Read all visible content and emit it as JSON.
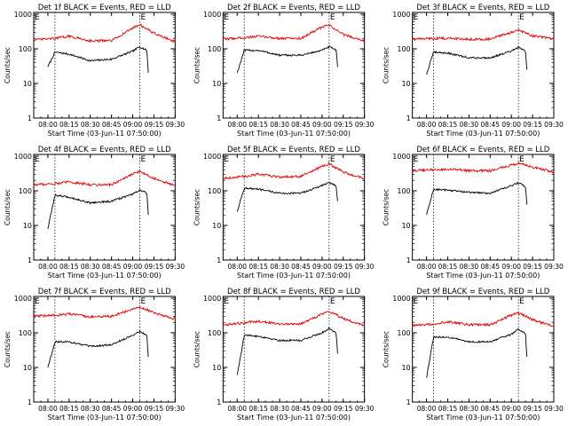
{
  "chart_data": [
    {
      "type": "line",
      "title": "Det 1f BLACK = Events, RED = LLD",
      "xlabel": "Start Time (03-Jun-11 07:50:00)",
      "ylabel": "Counts/sec",
      "x_ticks": [
        "08:00",
        "08:15",
        "08:30",
        "08:45",
        "09:00",
        "09:15",
        "09:30"
      ],
      "y_ticks": [
        "1",
        "10",
        "100",
        "1000"
      ],
      "y_scale": "log",
      "ylim": [
        1,
        1000
      ],
      "xlim": [
        "07:50",
        "09:30"
      ],
      "marker": "E",
      "series": [
        {
          "name": "BLACK = Events",
          "color": "#000000",
          "x": [
            "08:00",
            "08:05",
            "08:15",
            "08:30",
            "08:45",
            "09:00",
            "09:05",
            "09:10",
            "09:11"
          ],
          "y": [
            30,
            80,
            70,
            45,
            50,
            85,
            115,
            90,
            20
          ]
        },
        {
          "name": "RED = LLD",
          "color": "#e00000",
          "x": [
            "07:50",
            "08:05",
            "08:15",
            "08:30",
            "08:45",
            "09:00",
            "09:05",
            "09:15",
            "09:30"
          ],
          "y": [
            180,
            200,
            230,
            170,
            170,
            400,
            500,
            280,
            160
          ]
        }
      ]
    },
    {
      "type": "line",
      "title": "Det 2f BLACK = Events, RED = LLD",
      "xlabel": "Start Time (03-Jun-11 07:50:00)",
      "ylabel": "Counts/sec",
      "x_ticks": [
        "08:00",
        "08:15",
        "08:30",
        "08:45",
        "09:00",
        "09:15",
        "09:30"
      ],
      "y_ticks": [
        "1",
        "10",
        "100",
        "1000"
      ],
      "y_scale": "log",
      "ylim": [
        1,
        1000
      ],
      "xlim": [
        "07:50",
        "09:30"
      ],
      "marker": "E",
      "series": [
        {
          "name": "BLACK = Events",
          "color": "#000000",
          "x": [
            "08:00",
            "08:05",
            "08:15",
            "08:30",
            "08:45",
            "09:00",
            "09:05",
            "09:10",
            "09:11"
          ],
          "y": [
            20,
            90,
            90,
            65,
            65,
            90,
            115,
            90,
            30
          ]
        },
        {
          "name": "RED = LLD",
          "color": "#e00000",
          "x": [
            "07:50",
            "08:05",
            "08:15",
            "08:30",
            "08:45",
            "09:00",
            "09:05",
            "09:15",
            "09:30"
          ],
          "y": [
            190,
            210,
            230,
            200,
            200,
            420,
            480,
            260,
            170
          ]
        }
      ]
    },
    {
      "type": "line",
      "title": "Det 3f BLACK = Events, RED = LLD",
      "xlabel": "Start Time (03-Jun-11 07:50:00)",
      "ylabel": "Counts/sec",
      "x_ticks": [
        "08:00",
        "08:15",
        "08:30",
        "08:45",
        "09:00",
        "09:15",
        "09:30"
      ],
      "y_ticks": [
        "1",
        "10",
        "100",
        "1000"
      ],
      "y_scale": "log",
      "ylim": [
        1,
        1000
      ],
      "xlim": [
        "07:50",
        "09:30"
      ],
      "marker": "E",
      "series": [
        {
          "name": "BLACK = Events",
          "color": "#000000",
          "x": [
            "08:00",
            "08:05",
            "08:15",
            "08:30",
            "08:45",
            "09:00",
            "09:05",
            "09:10",
            "09:11"
          ],
          "y": [
            18,
            80,
            75,
            55,
            55,
            85,
            110,
            85,
            25
          ]
        },
        {
          "name": "RED = LLD",
          "color": "#e00000",
          "x": [
            "07:50",
            "08:05",
            "08:15",
            "08:30",
            "08:45",
            "09:00",
            "09:05",
            "09:15",
            "09:30"
          ],
          "y": [
            190,
            200,
            200,
            190,
            190,
            300,
            340,
            240,
            190
          ]
        }
      ]
    },
    {
      "type": "line",
      "title": "Det 4f BLACK = Events, RED = LLD",
      "xlabel": "Start Time (03-Jun-11 07:50:00)",
      "ylabel": "Counts/sec",
      "x_ticks": [
        "08:00",
        "08:15",
        "08:30",
        "08:45",
        "09:00",
        "09:15",
        "09:30"
      ],
      "y_ticks": [
        "1",
        "10",
        "100",
        "1000"
      ],
      "y_scale": "log",
      "ylim": [
        1,
        1000
      ],
      "xlim": [
        "07:50",
        "09:30"
      ],
      "marker": "E",
      "series": [
        {
          "name": "BLACK = Events",
          "color": "#000000",
          "x": [
            "08:00",
            "08:05",
            "08:15",
            "08:30",
            "08:45",
            "09:00",
            "09:05",
            "09:10",
            "09:11"
          ],
          "y": [
            8,
            75,
            65,
            45,
            50,
            80,
            105,
            85,
            20
          ]
        },
        {
          "name": "RED = LLD",
          "color": "#e00000",
          "x": [
            "07:50",
            "08:05",
            "08:15",
            "08:30",
            "08:45",
            "09:00",
            "09:05",
            "09:15",
            "09:30"
          ],
          "y": [
            150,
            160,
            180,
            150,
            150,
            300,
            370,
            230,
            140
          ]
        }
      ]
    },
    {
      "type": "line",
      "title": "Det 5f BLACK = Events, RED = LLD",
      "xlabel": "Start Time (03-Jun-11 07:50:00)",
      "ylabel": "Counts/sec",
      "x_ticks": [
        "08:00",
        "08:15",
        "08:30",
        "08:45",
        "09:00",
        "09:15",
        "09:30"
      ],
      "y_ticks": [
        "1",
        "10",
        "100",
        "1000"
      ],
      "y_scale": "log",
      "ylim": [
        1,
        1000
      ],
      "xlim": [
        "07:50",
        "09:30"
      ],
      "marker": "E",
      "series": [
        {
          "name": "BLACK = Events",
          "color": "#000000",
          "x": [
            "08:00",
            "08:05",
            "08:15",
            "08:30",
            "08:45",
            "09:00",
            "09:05",
            "09:10",
            "09:11"
          ],
          "y": [
            25,
            120,
            110,
            85,
            85,
            140,
            175,
            140,
            50
          ]
        },
        {
          "name": "RED = LLD",
          "color": "#e00000",
          "x": [
            "07:50",
            "08:05",
            "08:15",
            "08:30",
            "08:45",
            "09:00",
            "09:05",
            "09:15",
            "09:30"
          ],
          "y": [
            230,
            260,
            300,
            250,
            260,
            500,
            600,
            350,
            220
          ]
        }
      ]
    },
    {
      "type": "line",
      "title": "Det 6f BLACK = Events, RED = LLD",
      "xlabel": "Start Time (03-Jun-11 07:50:00)",
      "ylabel": "Counts/sec",
      "x_ticks": [
        "08:00",
        "08:15",
        "08:30",
        "08:45",
        "09:00",
        "09:15",
        "09:30"
      ],
      "y_ticks": [
        "1",
        "10",
        "100",
        "1000"
      ],
      "y_scale": "log",
      "ylim": [
        1,
        1000
      ],
      "xlim": [
        "07:50",
        "09:30"
      ],
      "marker": "E",
      "series": [
        {
          "name": "BLACK = Events",
          "color": "#000000",
          "x": [
            "08:00",
            "08:05",
            "08:15",
            "08:30",
            "08:45",
            "09:00",
            "09:05",
            "09:10",
            "09:11"
          ],
          "y": [
            20,
            110,
            105,
            90,
            85,
            140,
            170,
            130,
            40
          ]
        },
        {
          "name": "RED = LLD",
          "color": "#e00000",
          "x": [
            "07:50",
            "08:05",
            "08:15",
            "08:30",
            "08:45",
            "09:00",
            "09:05",
            "09:15",
            "09:30"
          ],
          "y": [
            380,
            400,
            420,
            380,
            380,
            550,
            620,
            480,
            350
          ]
        }
      ]
    },
    {
      "type": "line",
      "title": "Det 7f BLACK = Events, RED = LLD",
      "xlabel": "Start Time (03-Jun-11 07:50:00)",
      "ylabel": "Counts/sec",
      "x_ticks": [
        "08:00",
        "08:15",
        "08:30",
        "08:45",
        "09:00",
        "09:15",
        "09:30"
      ],
      "y_ticks": [
        "1",
        "10",
        "100",
        "1000"
      ],
      "y_scale": "log",
      "ylim": [
        1,
        1000
      ],
      "xlim": [
        "07:50",
        "09:30"
      ],
      "marker": "E",
      "series": [
        {
          "name": "BLACK = Events",
          "color": "#000000",
          "x": [
            "08:00",
            "08:05",
            "08:15",
            "08:30",
            "08:45",
            "09:00",
            "09:05",
            "09:10",
            "09:11"
          ],
          "y": [
            10,
            55,
            55,
            40,
            45,
            85,
            110,
            85,
            20
          ]
        },
        {
          "name": "RED = LLD",
          "color": "#e00000",
          "x": [
            "07:50",
            "08:05",
            "08:15",
            "08:30",
            "08:45",
            "09:00",
            "09:05",
            "09:15",
            "09:30"
          ],
          "y": [
            300,
            320,
            350,
            290,
            300,
            480,
            550,
            380,
            250
          ]
        }
      ]
    },
    {
      "type": "line",
      "title": "Det 8f BLACK = Events, RED = LLD",
      "xlabel": "Start Time (03-Jun-11 07:50:00)",
      "ylabel": "Counts/sec",
      "x_ticks": [
        "08:00",
        "08:15",
        "08:30",
        "08:45",
        "09:00",
        "09:15",
        "09:30"
      ],
      "y_ticks": [
        "1",
        "10",
        "100",
        "1000"
      ],
      "y_scale": "log",
      "ylim": [
        1,
        1000
      ],
      "xlim": [
        "07:50",
        "09:30"
      ],
      "marker": "E",
      "series": [
        {
          "name": "BLACK = Events",
          "color": "#000000",
          "x": [
            "08:00",
            "08:05",
            "08:15",
            "08:30",
            "08:45",
            "09:00",
            "09:05",
            "09:10",
            "09:11"
          ],
          "y": [
            6,
            85,
            80,
            60,
            60,
            100,
            135,
            100,
            25
          ]
        },
        {
          "name": "RED = LLD",
          "color": "#e00000",
          "x": [
            "07:50",
            "08:05",
            "08:15",
            "08:30",
            "08:45",
            "09:00",
            "09:05",
            "09:15",
            "09:30"
          ],
          "y": [
            170,
            190,
            220,
            180,
            180,
            350,
            420,
            260,
            160
          ]
        }
      ]
    },
    {
      "type": "line",
      "title": "Det 9f BLACK = Events, RED = LLD",
      "xlabel": "Start Time (03-Jun-11 07:50:00)",
      "ylabel": "Counts/sec",
      "x_ticks": [
        "08:00",
        "08:15",
        "08:30",
        "08:45",
        "09:00",
        "09:15",
        "09:30"
      ],
      "y_ticks": [
        "1",
        "10",
        "100",
        "1000"
      ],
      "y_scale": "log",
      "ylim": [
        1,
        1000
      ],
      "xlim": [
        "07:50",
        "09:30"
      ],
      "marker": "E",
      "series": [
        {
          "name": "BLACK = Events",
          "color": "#000000",
          "x": [
            "08:00",
            "08:05",
            "08:15",
            "08:30",
            "08:45",
            "09:00",
            "09:05",
            "09:10",
            "09:11"
          ],
          "y": [
            5,
            75,
            75,
            55,
            55,
            90,
            130,
            95,
            20
          ]
        },
        {
          "name": "RED = LLD",
          "color": "#e00000",
          "x": [
            "07:50",
            "08:05",
            "08:15",
            "08:30",
            "08:45",
            "09:00",
            "09:05",
            "09:15",
            "09:30"
          ],
          "y": [
            160,
            180,
            210,
            170,
            170,
            320,
            380,
            240,
            150
          ]
        }
      ]
    }
  ]
}
